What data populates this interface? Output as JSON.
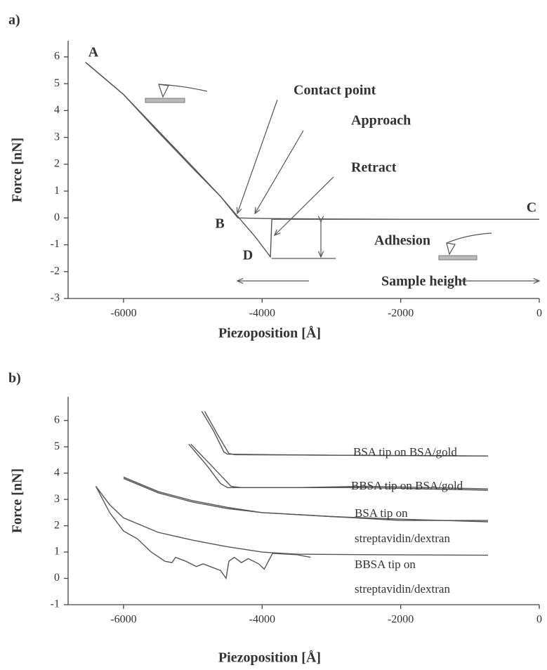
{
  "chart_data": [
    {
      "type": "line",
      "label": "a)",
      "ylabel": "Force [nN]",
      "xlabel": "Piezoposition [Å]",
      "xlim": [
        -6800,
        0
      ],
      "ylim": [
        -3,
        6.6
      ],
      "xticks": [
        -6000,
        -4000,
        -2000,
        0
      ],
      "yticks": [
        -3,
        -2,
        -1,
        0,
        1,
        2,
        3,
        4,
        5,
        6
      ],
      "color": "#555",
      "annotations": [
        "A",
        "B",
        "C",
        "D",
        "Contact point",
        "Adhesion",
        "Sample height"
      ],
      "series": [
        {
          "name": "Approach",
          "x": [
            -6550,
            -6000,
            -5500,
            -5000,
            -4600,
            -4350,
            -4000,
            -3000,
            -2000,
            -1000,
            0
          ],
          "values": [
            5.8,
            4.6,
            3.2,
            1.85,
            0.8,
            0.0,
            -0.02,
            -0.04,
            -0.05,
            -0.05,
            -0.05
          ]
        },
        {
          "name": "Retract",
          "x": [
            -6550,
            -6000,
            -5500,
            -5000,
            -4600,
            -4350,
            -4100,
            -3880,
            -3860,
            -3500,
            -2000,
            0
          ],
          "values": [
            5.8,
            4.6,
            3.25,
            1.9,
            0.8,
            0.05,
            -0.7,
            -1.45,
            -0.05,
            -0.05,
            -0.05,
            -0.05
          ]
        }
      ]
    },
    {
      "type": "line",
      "label": "b)",
      "ylabel": "Force [nN]",
      "xlabel": "Piezoposition [Å]",
      "xlim": [
        -6800,
        0
      ],
      "ylim": [
        -1,
        6.9
      ],
      "xticks": [
        -6000,
        -4000,
        -2000,
        0
      ],
      "yticks": [
        -1,
        0,
        1,
        2,
        3,
        4,
        5,
        6
      ],
      "color": "#555",
      "series": [
        {
          "name": [
            "BSA tip on BSA/gold"
          ],
          "curves": [
            {
              "x": [
                -4870,
                -4700,
                -4550,
                -4500,
                -3000,
                -740
              ],
              "values": [
                6.35,
                5.6,
                4.8,
                4.72,
                4.68,
                4.65
              ]
            },
            {
              "x": [
                -4830,
                -4650,
                -4480,
                -4400,
                -740
              ],
              "values": [
                6.35,
                5.5,
                4.75,
                4.7,
                4.65
              ]
            }
          ]
        },
        {
          "name": [
            "BBSA tip on BSA/gold"
          ],
          "curves": [
            {
              "x": [
                -5060,
                -4800,
                -4600,
                -4500,
                -3500,
                -2500,
                -740
              ],
              "values": [
                5.1,
                4.3,
                3.6,
                3.45,
                3.45,
                3.5,
                3.4
              ]
            },
            {
              "x": [
                -5030,
                -4700,
                -4450,
                -4300,
                -2500,
                -740
              ],
              "values": [
                5.1,
                4.2,
                3.5,
                3.45,
                3.45,
                3.35
              ]
            }
          ]
        },
        {
          "name": [
            "BSA tip on",
            "streptavidin/dextran"
          ],
          "curves": [
            {
              "x": [
                -6000,
                -5500,
                -5000,
                -4500,
                -4000,
                -3000,
                -2000,
                -740
              ],
              "values": [
                3.85,
                3.3,
                2.95,
                2.7,
                2.5,
                2.35,
                2.25,
                2.15
              ]
            },
            {
              "x": [
                -6000,
                -5500,
                -5000,
                -4500,
                -4000,
                -3000,
                -2000,
                -740
              ],
              "values": [
                3.8,
                3.25,
                2.9,
                2.65,
                2.5,
                2.35,
                2.2,
                2.2
              ]
            }
          ]
        },
        {
          "name": [
            "BBSA tip on",
            "streptavidin/dextran"
          ],
          "curves": [
            {
              "x": [
                -6400,
                -6200,
                -6000,
                -5800,
                -5600,
                -5400,
                -5300,
                -5250,
                -5100,
                -4950,
                -4850,
                -4750,
                -4600,
                -4520,
                -4480,
                -4400,
                -4300,
                -4200,
                -4050,
                -3970,
                -3850,
                -3500,
                -3300
              ],
              "values": [
                3.5,
                2.5,
                1.8,
                1.5,
                1.0,
                0.65,
                0.6,
                0.8,
                0.65,
                0.45,
                0.55,
                0.45,
                0.3,
                0.0,
                0.65,
                0.8,
                0.6,
                0.75,
                0.55,
                0.35,
                0.95,
                0.9,
                0.8
              ]
            },
            {
              "x": [
                -6400,
                -6200,
                -6000,
                -5500,
                -5000,
                -4500,
                -4000,
                -3500,
                -2500,
                -740
              ],
              "values": [
                3.5,
                2.8,
                2.3,
                1.75,
                1.45,
                1.2,
                1.0,
                0.92,
                0.9,
                0.88
              ]
            }
          ]
        }
      ]
    }
  ]
}
